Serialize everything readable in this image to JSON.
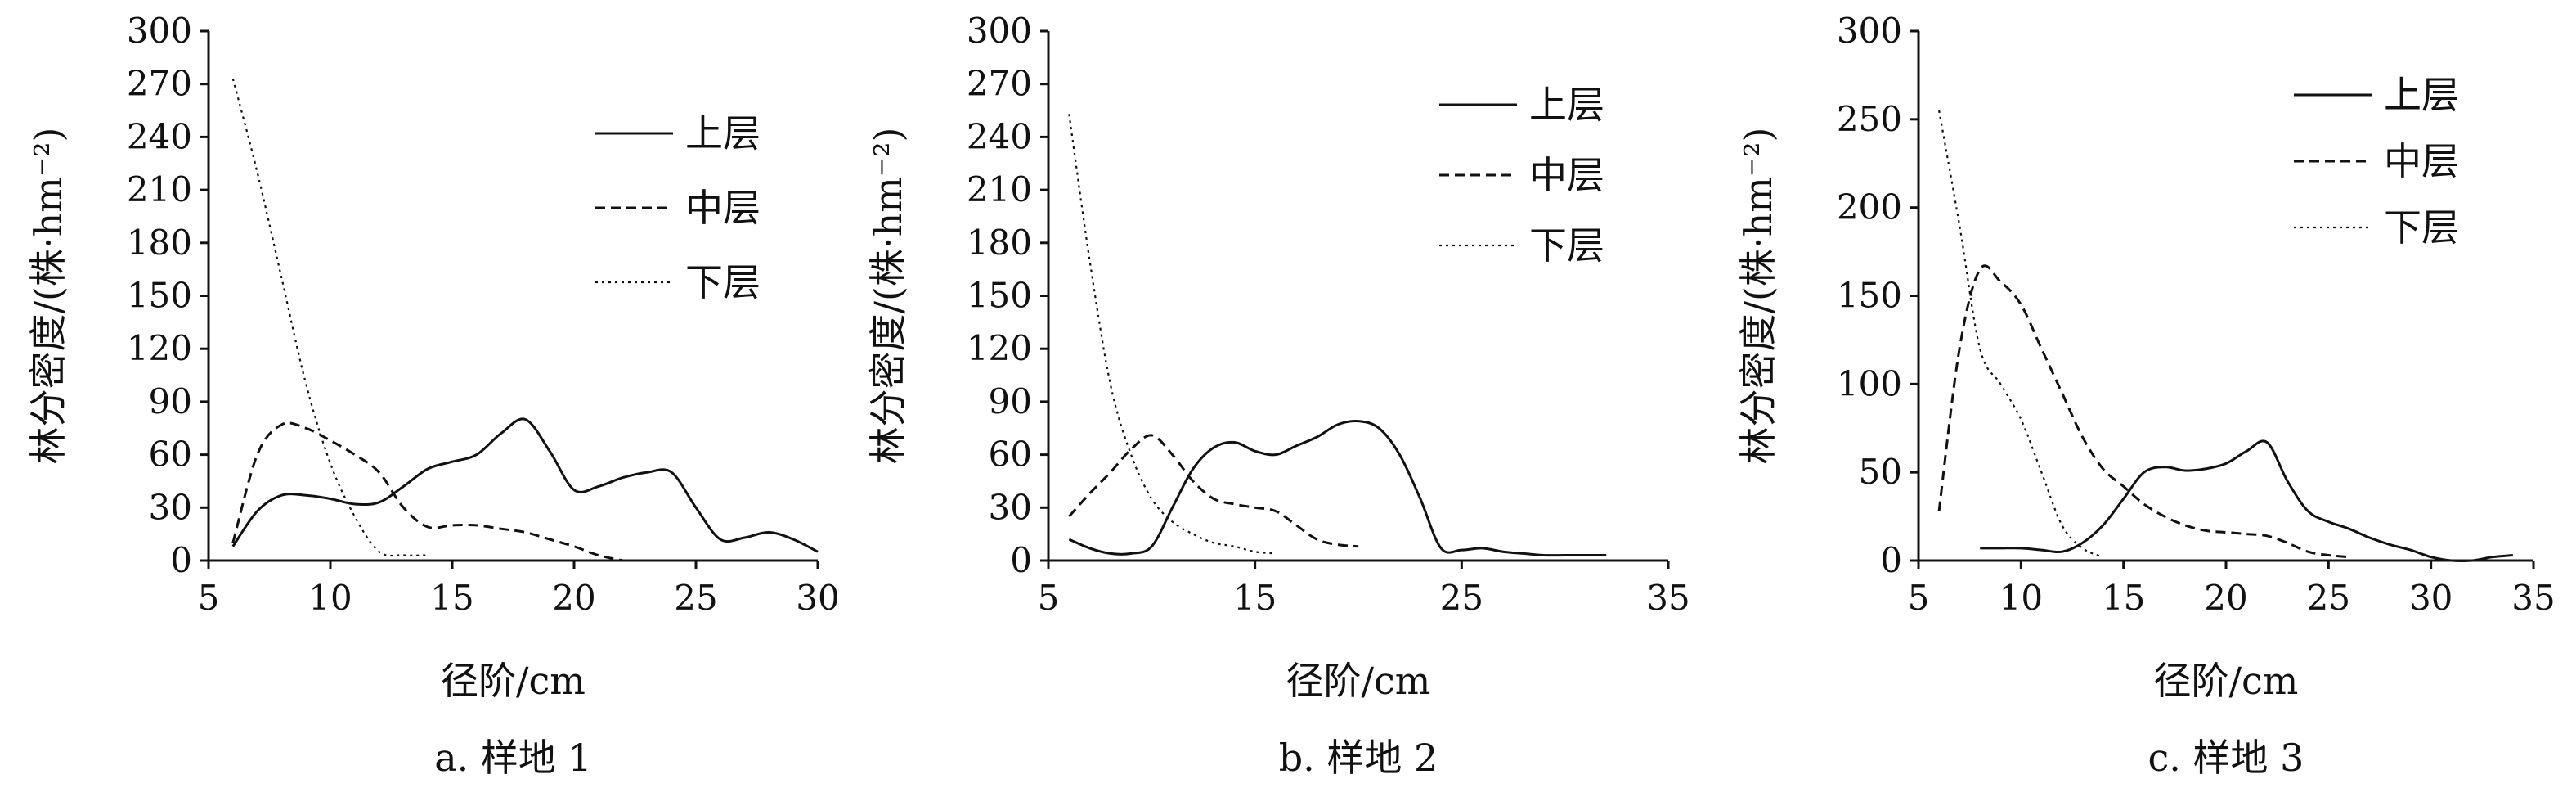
{
  "chart_data": [
    {
      "type": "line",
      "caption": "a. 样地 1",
      "xlabel": "径阶/cm",
      "ylabel": "林分密度/(株·hm⁻²)",
      "xlim": [
        5,
        30
      ],
      "ylim": [
        0,
        300
      ],
      "xticks": [
        5,
        10,
        15,
        20,
        25,
        30
      ],
      "yticks": [
        0,
        30,
        60,
        90,
        120,
        150,
        180,
        210,
        240,
        270,
        300
      ],
      "legend_position": "top-right",
      "series": [
        {
          "name": "上层",
          "style": "solid",
          "x": [
            6,
            7,
            8,
            9,
            10,
            11,
            12,
            13,
            14,
            15,
            16,
            17,
            18,
            19,
            20,
            21,
            22,
            23,
            24,
            25,
            26,
            27,
            28,
            29,
            30
          ],
          "y": [
            8,
            28,
            37,
            37,
            35,
            32,
            33,
            42,
            52,
            56,
            60,
            72,
            80,
            62,
            40,
            42,
            47,
            50,
            50,
            30,
            12,
            13,
            16,
            12,
            5
          ]
        },
        {
          "name": "中层",
          "style": "dashed",
          "x": [
            6,
            7,
            8,
            9,
            10,
            11,
            12,
            13,
            14,
            15,
            16,
            17,
            18,
            19,
            20,
            21,
            22
          ],
          "y": [
            10,
            60,
            77,
            75,
            68,
            60,
            50,
            30,
            19,
            20,
            20,
            18,
            16,
            12,
            8,
            3,
            0
          ]
        },
        {
          "name": "下层",
          "style": "dotted",
          "x": [
            6,
            7,
            8,
            9,
            10,
            11,
            12,
            13,
            14
          ],
          "y": [
            273,
            220,
            160,
            100,
            55,
            25,
            5,
            3,
            3
          ]
        }
      ]
    },
    {
      "type": "line",
      "caption": "b. 样地 2",
      "xlabel": "径阶/cm",
      "ylabel": "林分密度/(株·hm⁻²)",
      "xlim": [
        5,
        35
      ],
      "ylim": [
        0,
        300
      ],
      "xticks": [
        5,
        15,
        25,
        35
      ],
      "yticks": [
        0,
        30,
        60,
        90,
        120,
        150,
        180,
        210,
        240,
        270,
        300
      ],
      "legend_position": "top-right",
      "series": [
        {
          "name": "上层",
          "style": "solid",
          "x": [
            6,
            7,
            8,
            9,
            10,
            11,
            12,
            13,
            14,
            15,
            16,
            17,
            18,
            19,
            20,
            21,
            22,
            23,
            24,
            25,
            26,
            27,
            28,
            29,
            30,
            31,
            32
          ],
          "y": [
            12,
            7,
            4,
            4,
            8,
            30,
            52,
            64,
            67,
            62,
            60,
            65,
            70,
            77,
            79,
            75,
            60,
            35,
            7,
            6,
            7,
            5,
            4,
            3,
            3,
            3,
            3
          ]
        },
        {
          "name": "中层",
          "style": "dashed",
          "x": [
            6,
            7,
            8,
            9,
            10,
            11,
            12,
            13,
            14,
            15,
            16,
            17,
            18,
            19,
            20
          ],
          "y": [
            25,
            38,
            50,
            63,
            71,
            60,
            45,
            35,
            32,
            30,
            28,
            20,
            12,
            9,
            8
          ]
        },
        {
          "name": "下层",
          "style": "dotted",
          "x": [
            6,
            7,
            8,
            9,
            10,
            11,
            12,
            13,
            14,
            15,
            16
          ],
          "y": [
            253,
            170,
            100,
            60,
            35,
            22,
            15,
            10,
            8,
            5,
            4
          ]
        }
      ]
    },
    {
      "type": "line",
      "caption": "c. 样地 3",
      "xlabel": "径阶/cm",
      "ylabel": "林分密度/(株·hm⁻²)",
      "xlim": [
        5,
        35
      ],
      "ylim": [
        0,
        300
      ],
      "xticks": [
        5,
        10,
        15,
        20,
        25,
        30,
        35
      ],
      "yticks": [
        0,
        50,
        100,
        150,
        200,
        250,
        300
      ],
      "legend_position": "top-right",
      "series": [
        {
          "name": "上层",
          "style": "solid",
          "x": [
            8,
            9,
            10,
            11,
            12,
            13,
            14,
            15,
            16,
            17,
            18,
            19,
            20,
            21,
            22,
            23,
            24,
            25,
            26,
            27,
            28,
            29,
            30,
            31,
            32,
            33,
            34
          ],
          "y": [
            7,
            7,
            7,
            6,
            5,
            10,
            20,
            35,
            50,
            53,
            51,
            52,
            55,
            62,
            67,
            45,
            28,
            22,
            18,
            13,
            9,
            6,
            2,
            0,
            0,
            2,
            3
          ]
        },
        {
          "name": "中层",
          "style": "dashed",
          "x": [
            6,
            7,
            8,
            9,
            10,
            11,
            12,
            13,
            14,
            15,
            16,
            17,
            18,
            19,
            20,
            21,
            22,
            23,
            24,
            25,
            26
          ],
          "y": [
            28,
            120,
            165,
            158,
            145,
            120,
            95,
            70,
            52,
            42,
            32,
            25,
            20,
            17,
            16,
            15,
            14,
            10,
            5,
            3,
            2
          ]
        },
        {
          "name": "下层",
          "style": "dotted",
          "x": [
            6,
            7,
            8,
            9,
            10,
            11,
            12,
            13,
            14
          ],
          "y": [
            255,
            190,
            120,
            100,
            80,
            50,
            20,
            7,
            2
          ]
        }
      ]
    }
  ]
}
